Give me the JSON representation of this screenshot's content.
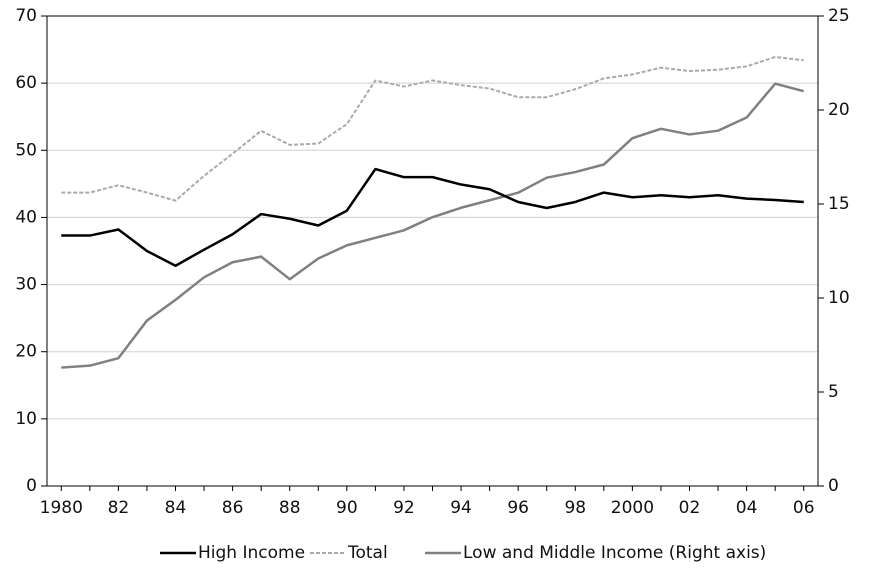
{
  "chart_data": {
    "type": "line",
    "categories": [
      "1980",
      null,
      "82",
      null,
      "84",
      null,
      "86",
      null,
      "88",
      null,
      "90",
      null,
      "92",
      null,
      "94",
      null,
      "96",
      null,
      "98",
      null,
      "2000",
      null,
      "02",
      null,
      "04",
      null,
      "06"
    ],
    "series": [
      {
        "name": "High Income",
        "color": "#000000",
        "dash": false,
        "values": [
          37.3,
          37.3,
          38.2,
          35,
          32.8,
          35.2,
          37.5,
          40.5,
          39.8,
          38.8,
          41,
          47.2,
          46,
          46,
          44.9,
          44.2,
          42.3,
          41.4,
          42.3,
          43.7,
          43,
          43.3,
          43,
          43.3,
          42.8,
          42.6,
          42.3
        ]
      },
      {
        "name": "Total",
        "color": "#aaaaaa",
        "dash": true,
        "values": [
          43.7,
          43.7,
          44.8,
          43.7,
          42.5,
          46.2,
          49.5,
          52.9,
          50.8,
          51,
          53.9,
          60.4,
          59.5,
          60.4,
          59.7,
          59.2,
          57.9,
          57.9,
          59.1,
          60.7,
          61.3,
          62.3,
          61.8,
          62,
          62.5,
          63.9,
          63.4
        ]
      },
      {
        "name": "Low and Middle Income (Right axis)",
        "color": "#808080",
        "dash": false,
        "axis": "y2",
        "values": [
          6.3,
          6.4,
          6.8,
          8.8,
          9.9,
          11.1,
          11.9,
          12.2,
          11.0,
          12.1,
          12.8,
          13.2,
          13.6,
          14.3,
          14.8,
          15.2,
          15.6,
          16.4,
          16.7,
          17.1,
          18.5,
          19.0,
          18.7,
          18.9,
          19.6,
          21.4,
          21.0
        ]
      }
    ],
    "ylim": [
      0,
      70
    ],
    "yticks": [
      0,
      10,
      20,
      30,
      40,
      50,
      60,
      70
    ],
    "y2lim": [
      0,
      25
    ],
    "y2ticks": [
      0,
      5,
      10,
      15,
      20,
      25
    ],
    "grid": true,
    "legend": "bottom"
  }
}
